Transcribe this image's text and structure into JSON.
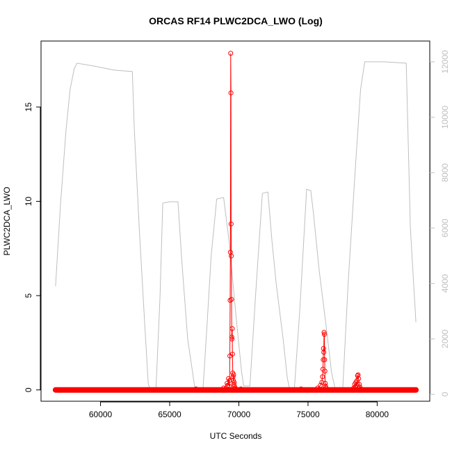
{
  "chart_data": {
    "type": "line",
    "title": "ORCAS RF14 PLWC2DCA_LWO (Log)",
    "xlabel": "UTC Seconds",
    "ylabel": "PLWC2DCA_LWO",
    "xlim": [
      55700,
      83800
    ],
    "ylim": [
      -0.6,
      18.5
    ],
    "y2lim": [
      -250,
      12750
    ],
    "x_ticks": [
      60000,
      65000,
      70000,
      75000,
      80000
    ],
    "y_ticks": [
      0,
      5,
      10,
      15
    ],
    "y2_ticks": [
      0,
      2000,
      4000,
      6000,
      8000,
      10000,
      12000
    ],
    "x_tick_labels": [
      "60000",
      "65000",
      "70000",
      "75000",
      "80000"
    ],
    "y_tick_labels": [
      "0",
      "5",
      "10",
      "15"
    ],
    "y2_tick_labels": [
      "0",
      "2000",
      "4000",
      "6000",
      "8000",
      "10000",
      "12000"
    ],
    "grid": false,
    "series": [
      {
        "role": "altitude-background",
        "axis": "right",
        "color": "#bebebe",
        "points": [
          [
            56750,
            3900
          ],
          [
            57100,
            6800
          ],
          [
            57500,
            9500
          ],
          [
            57800,
            11000
          ],
          [
            58100,
            11750
          ],
          [
            58300,
            11950
          ],
          [
            59500,
            11850
          ],
          [
            61000,
            11700
          ],
          [
            62300,
            11650
          ],
          [
            62450,
            9500
          ],
          [
            62800,
            6000
          ],
          [
            63200,
            2500
          ],
          [
            63450,
            400
          ],
          [
            63600,
            120
          ],
          [
            64000,
            100
          ],
          [
            64300,
            3500
          ],
          [
            64500,
            6900
          ],
          [
            65000,
            6950
          ],
          [
            65600,
            6950
          ],
          [
            65850,
            5000
          ],
          [
            66300,
            2000
          ],
          [
            66800,
            300
          ],
          [
            67100,
            120
          ],
          [
            67400,
            120
          ],
          [
            67700,
            2500
          ],
          [
            68000,
            5000
          ],
          [
            68400,
            7050
          ],
          [
            68900,
            7100
          ],
          [
            69300,
            5500
          ],
          [
            69800,
            2800
          ],
          [
            70200,
            800
          ],
          [
            70350,
            300
          ],
          [
            70800,
            300
          ],
          [
            71200,
            3500
          ],
          [
            71700,
            7250
          ],
          [
            72100,
            7300
          ],
          [
            72400,
            5500
          ],
          [
            72700,
            4000
          ],
          [
            73200,
            2000
          ],
          [
            73500,
            600
          ],
          [
            73700,
            100
          ],
          [
            74000,
            100
          ],
          [
            74400,
            3000
          ],
          [
            74900,
            7400
          ],
          [
            75200,
            7350
          ],
          [
            75400,
            6500
          ],
          [
            75800,
            4500
          ],
          [
            76300,
            2500
          ],
          [
            76700,
            800
          ],
          [
            77000,
            100
          ],
          [
            77500,
            100
          ],
          [
            77900,
            4000
          ],
          [
            78400,
            8000
          ],
          [
            78800,
            11000
          ],
          [
            79100,
            12000
          ],
          [
            80500,
            12000
          ],
          [
            82100,
            11950
          ],
          [
            82400,
            6000
          ],
          [
            82800,
            2600
          ]
        ]
      },
      {
        "name": "PLWC2DCA_LWO",
        "axis": "left",
        "color": "#ff0000",
        "baseline": {
          "x_start": 56750,
          "x_end": 82800,
          "y": 0
        },
        "points": [
          [
            66900,
            0.05
          ],
          [
            68900,
            0.1
          ],
          [
            69150,
            0.35
          ],
          [
            69200,
            0.25
          ],
          [
            69250,
            0.6
          ],
          [
            69300,
            0.2
          ],
          [
            69330,
            0.5
          ],
          [
            69350,
            1.8
          ],
          [
            69370,
            4.75
          ],
          [
            69390,
            7.3
          ],
          [
            69410,
            17.85
          ],
          [
            69430,
            15.75
          ],
          [
            69440,
            8.8
          ],
          [
            69455,
            7.1
          ],
          [
            69470,
            4.8
          ],
          [
            69490,
            2.8
          ],
          [
            69500,
            2.7
          ],
          [
            69520,
            3.25
          ],
          [
            69540,
            1.9
          ],
          [
            69560,
            0.9
          ],
          [
            69580,
            0.7
          ],
          [
            69600,
            0.5
          ],
          [
            69620,
            0.8
          ],
          [
            69640,
            0.3
          ],
          [
            69660,
            0.4
          ],
          [
            69680,
            0.2
          ],
          [
            69720,
            0.1
          ],
          [
            69800,
            0.05
          ],
          [
            70150,
            0.05
          ],
          [
            74500,
            0.05
          ],
          [
            75700,
            0.1
          ],
          [
            75900,
            0.25
          ],
          [
            76000,
            0.4
          ],
          [
            76050,
            0.7
          ],
          [
            76080,
            1.1
          ],
          [
            76100,
            1.6
          ],
          [
            76120,
            2.2
          ],
          [
            76140,
            2.0
          ],
          [
            76160,
            3.05
          ],
          [
            76180,
            2.95
          ],
          [
            76200,
            1.6
          ],
          [
            76220,
            1.0
          ],
          [
            76240,
            0.35
          ],
          [
            76270,
            0.2
          ],
          [
            76300,
            0.1
          ],
          [
            78300,
            0.1
          ],
          [
            78380,
            0.3
          ],
          [
            78420,
            0.15
          ],
          [
            78460,
            0.4
          ],
          [
            78500,
            0.25
          ],
          [
            78540,
            0.5
          ],
          [
            78580,
            0.75
          ],
          [
            78620,
            0.8
          ],
          [
            78660,
            0.6
          ],
          [
            78700,
            0.3
          ],
          [
            78750,
            0.15
          ],
          [
            78800,
            0.05
          ]
        ]
      }
    ]
  }
}
